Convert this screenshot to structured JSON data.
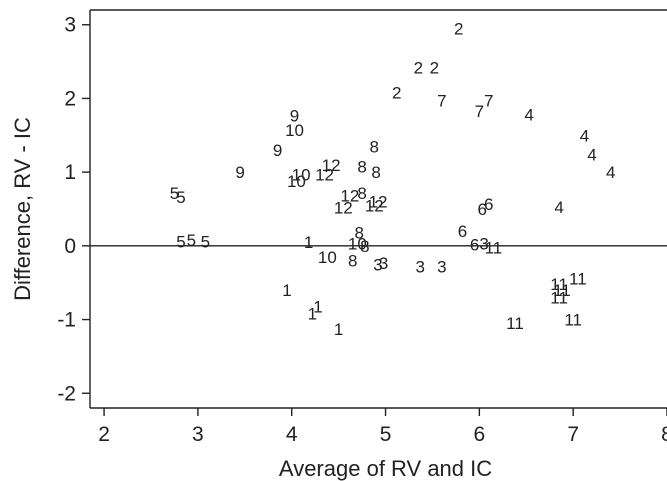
{
  "chart_data": {
    "type": "scatter",
    "title": "",
    "xlabel": "Average of RV and IC",
    "ylabel": "Difference, RV - IC",
    "xlim": [
      1.85,
      8.0
    ],
    "ylim": [
      -2.2,
      3.2
    ],
    "xticks": [
      "2",
      "3",
      "4",
      "5",
      "6",
      "7",
      "8"
    ],
    "yticks": [
      "3",
      "2",
      "1",
      "0",
      "-1",
      "-2"
    ],
    "reference_line_y": 0,
    "grid": false,
    "points": [
      {
        "x": 5.78,
        "y": 2.95,
        "label": "2"
      },
      {
        "x": 5.35,
        "y": 2.42,
        "label": "2"
      },
      {
        "x": 5.52,
        "y": 2.42,
        "label": "2"
      },
      {
        "x": 5.12,
        "y": 2.08,
        "label": "2"
      },
      {
        "x": 5.6,
        "y": 1.97,
        "label": "7"
      },
      {
        "x": 6.1,
        "y": 1.97,
        "label": "7"
      },
      {
        "x": 6.0,
        "y": 1.83,
        "label": "7"
      },
      {
        "x": 6.53,
        "y": 1.78,
        "label": "4"
      },
      {
        "x": 7.12,
        "y": 1.5,
        "label": "4"
      },
      {
        "x": 7.2,
        "y": 1.24,
        "label": "4"
      },
      {
        "x": 7.4,
        "y": 1.0,
        "label": "4"
      },
      {
        "x": 6.85,
        "y": 0.53,
        "label": "4"
      },
      {
        "x": 4.03,
        "y": 1.77,
        "label": "9"
      },
      {
        "x": 3.85,
        "y": 1.3,
        "label": "9"
      },
      {
        "x": 3.45,
        "y": 1.0,
        "label": "9"
      },
      {
        "x": 4.03,
        "y": 1.57,
        "label": "10"
      },
      {
        "x": 4.1,
        "y": 0.97,
        "label": "10"
      },
      {
        "x": 4.05,
        "y": 0.88,
        "label": "10"
      },
      {
        "x": 4.42,
        "y": 1.1,
        "label": "12"
      },
      {
        "x": 4.35,
        "y": 0.97,
        "label": "12"
      },
      {
        "x": 4.62,
        "y": 0.68,
        "label": "12"
      },
      {
        "x": 4.55,
        "y": 0.52,
        "label": "12"
      },
      {
        "x": 4.88,
        "y": 0.55,
        "label": "12"
      },
      {
        "x": 4.92,
        "y": 0.6,
        "label": "12"
      },
      {
        "x": 4.88,
        "y": 1.35,
        "label": "8"
      },
      {
        "x": 4.75,
        "y": 1.08,
        "label": "8"
      },
      {
        "x": 4.9,
        "y": 1.0,
        "label": "8"
      },
      {
        "x": 4.75,
        "y": 0.72,
        "label": "8"
      },
      {
        "x": 4.72,
        "y": 0.18,
        "label": "8"
      },
      {
        "x": 4.78,
        "y": 0.0,
        "label": "8"
      },
      {
        "x": 4.65,
        "y": -0.2,
        "label": "8"
      },
      {
        "x": 4.7,
        "y": 0.03,
        "label": "10"
      },
      {
        "x": 4.38,
        "y": -0.15,
        "label": "10"
      },
      {
        "x": 2.75,
        "y": 0.72,
        "label": "5"
      },
      {
        "x": 2.82,
        "y": 0.66,
        "label": "5"
      },
      {
        "x": 2.82,
        "y": 0.06,
        "label": "5"
      },
      {
        "x": 2.93,
        "y": 0.08,
        "label": "5"
      },
      {
        "x": 3.08,
        "y": 0.06,
        "label": "5"
      },
      {
        "x": 4.18,
        "y": 0.05,
        "label": "1"
      },
      {
        "x": 3.95,
        "y": -0.6,
        "label": "1"
      },
      {
        "x": 4.22,
        "y": -0.92,
        "label": "1"
      },
      {
        "x": 4.28,
        "y": -0.82,
        "label": "1"
      },
      {
        "x": 4.5,
        "y": -1.13,
        "label": "1"
      },
      {
        "x": 4.92,
        "y": -0.25,
        "label": "3"
      },
      {
        "x": 4.98,
        "y": -0.23,
        "label": "3"
      },
      {
        "x": 5.37,
        "y": -0.28,
        "label": "3"
      },
      {
        "x": 5.6,
        "y": -0.28,
        "label": "3"
      },
      {
        "x": 6.05,
        "y": 0.03,
        "label": "3"
      },
      {
        "x": 5.82,
        "y": 0.2,
        "label": "6"
      },
      {
        "x": 5.95,
        "y": 0.02,
        "label": "6"
      },
      {
        "x": 6.03,
        "y": 0.5,
        "label": "6"
      },
      {
        "x": 6.1,
        "y": 0.57,
        "label": "6"
      },
      {
        "x": 6.15,
        "y": -0.02,
        "label": "11"
      },
      {
        "x": 6.85,
        "y": -0.52,
        "label": "11"
      },
      {
        "x": 6.88,
        "y": -0.6,
        "label": "11"
      },
      {
        "x": 7.05,
        "y": -0.44,
        "label": "11"
      },
      {
        "x": 6.85,
        "y": -0.7,
        "label": "11"
      },
      {
        "x": 7.0,
        "y": -1.0,
        "label": "11"
      },
      {
        "x": 6.38,
        "y": -1.05,
        "label": "11"
      }
    ]
  }
}
